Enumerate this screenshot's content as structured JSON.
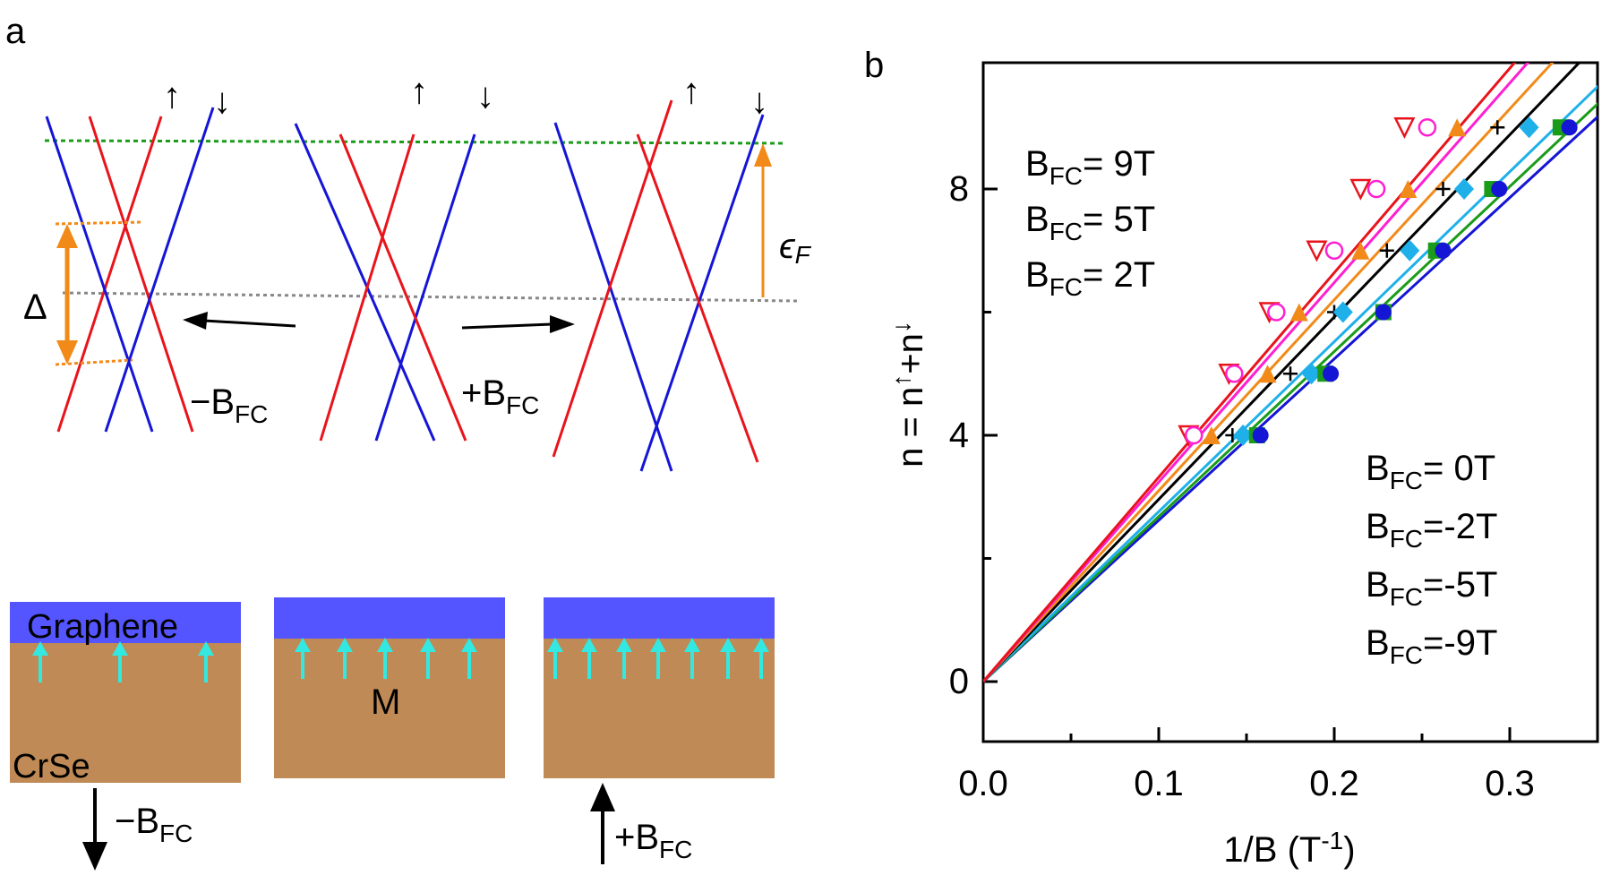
{
  "panel_a": {
    "label": "a",
    "spin_up": "↑",
    "spin_down": "↓",
    "gap_symbol": "Δ",
    "fermi_symbol": "ϵ",
    "fermi_sub": "F",
    "field_minus_prefix": "−B",
    "field_plus_prefix": "+B",
    "field_sub": "FC",
    "layer_top": "Graphene",
    "layer_bottom": "CrSe",
    "magnetization": "M",
    "colors": {
      "spin_up": "#e8141c",
      "spin_down": "#1515d6",
      "fermi_line": "#1a9c1a",
      "dirac_line": "#888888",
      "accent": "#f28a1a",
      "graphene": "#5555ff",
      "crse": "#bf8a55",
      "moment": "#33e8e0"
    }
  },
  "panel_b": {
    "label": "b",
    "legend_left": [
      "= 9T",
      "= 5T",
      "= 2T"
    ],
    "legend_right": [
      "= 0T",
      "=-2T",
      "=-5T",
      "=-9T"
    ],
    "legend_prefix": "B",
    "legend_sub": "FC"
  },
  "chart_data": {
    "type": "scatter",
    "xlabel": "1/B (T-1)",
    "ylabel": "n = n↑+n↓",
    "xlim": [
      0,
      0.35
    ],
    "ylim": [
      -1,
      10
    ],
    "x_ticks": [
      "0.0",
      "0.1",
      "0.2",
      "0.3"
    ],
    "y_ticks": [
      "0",
      "4",
      "8"
    ],
    "series": [
      {
        "name": "BFC= 9T",
        "color": "#e8141c",
        "marker": "triangle-down",
        "slope": 33.2,
        "points": [
          [
            0.117,
            4
          ],
          [
            0.14,
            5
          ],
          [
            0.163,
            6
          ],
          [
            0.19,
            7
          ],
          [
            0.215,
            8
          ],
          [
            0.24,
            9
          ]
        ]
      },
      {
        "name": "BFC= 5T",
        "color": "#ff1fd0",
        "marker": "circle-open",
        "slope": 32.4,
        "points": [
          [
            0.12,
            4
          ],
          [
            0.143,
            5
          ],
          [
            0.167,
            6
          ],
          [
            0.2,
            7
          ],
          [
            0.224,
            8
          ],
          [
            0.253,
            9
          ]
        ]
      },
      {
        "name": "BFC= 2T",
        "color": "#f28a1a",
        "marker": "triangle-up",
        "slope": 31.0,
        "points": [
          [
            0.13,
            4
          ],
          [
            0.162,
            5
          ],
          [
            0.18,
            6
          ],
          [
            0.215,
            7
          ],
          [
            0.242,
            8
          ],
          [
            0.27,
            9
          ]
        ]
      },
      {
        "name": "BFC= 0T",
        "color": "#000000",
        "marker": "plus",
        "slope": 29.6,
        "points": [
          [
            0.142,
            4
          ],
          [
            0.175,
            5
          ],
          [
            0.2,
            6
          ],
          [
            0.23,
            7
          ],
          [
            0.262,
            8
          ],
          [
            0.293,
            9
          ]
        ]
      },
      {
        "name": "BFC=-2T",
        "color": "#1fb0ea",
        "marker": "diamond",
        "slope": 27.6,
        "points": [
          [
            0.148,
            4
          ],
          [
            0.187,
            5
          ],
          [
            0.205,
            6
          ],
          [
            0.243,
            7
          ],
          [
            0.274,
            8
          ],
          [
            0.311,
            9
          ]
        ]
      },
      {
        "name": "BFC=-5T",
        "color": "#1a9c1a",
        "marker": "square",
        "slope": 26.8,
        "points": [
          [
            0.156,
            4
          ],
          [
            0.195,
            5
          ],
          [
            0.228,
            6
          ],
          [
            0.258,
            7
          ],
          [
            0.29,
            8
          ],
          [
            0.329,
            9
          ]
        ]
      },
      {
        "name": "BFC=-9T",
        "color": "#1515d6",
        "marker": "circle",
        "slope": 26.2,
        "points": [
          [
            0.158,
            4
          ],
          [
            0.198,
            5
          ],
          [
            0.228,
            6
          ],
          [
            0.262,
            7
          ],
          [
            0.294,
            8
          ],
          [
            0.334,
            9
          ]
        ]
      }
    ]
  }
}
